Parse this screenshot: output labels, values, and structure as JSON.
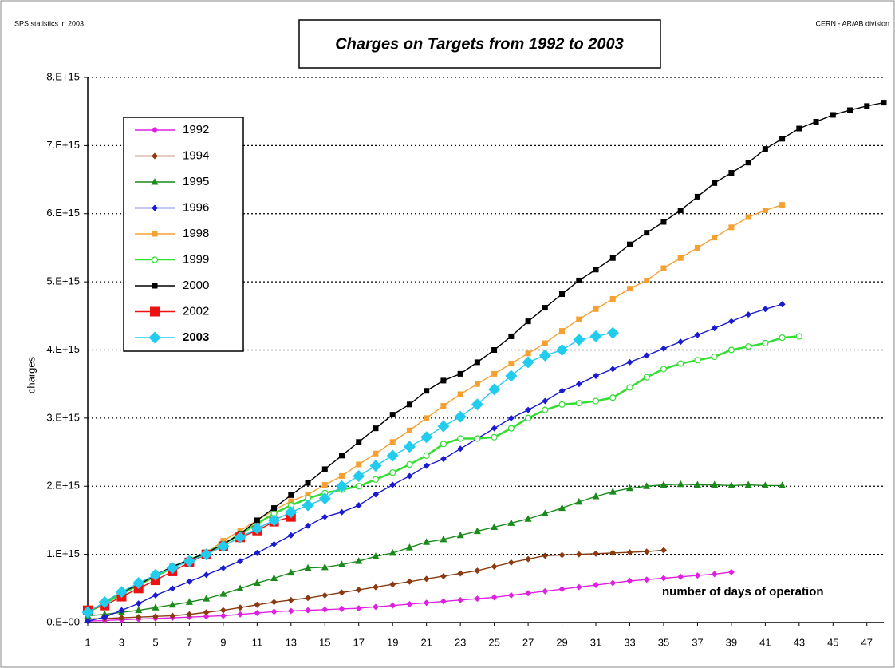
{
  "chart_data": {
    "type": "line",
    "title": "Charges on Targets from 1992 to 2003",
    "subtitle": "SPS statistics in 2003",
    "source": "CERN - AR/AB division",
    "y_label": "charges",
    "annotation": "number of days of operation",
    "x": [
      1,
      2,
      3,
      4,
      5,
      6,
      7,
      8,
      9,
      10,
      11,
      12,
      13,
      14,
      15,
      16,
      17,
      18,
      19,
      20,
      21,
      22,
      23,
      24,
      25,
      26,
      27,
      28,
      29,
      30,
      31,
      32,
      33,
      34,
      35,
      36,
      37,
      38,
      39,
      40,
      41,
      42,
      43,
      44,
      45,
      46,
      47,
      48
    ],
    "xlim": [
      1,
      48
    ],
    "xticks": [
      1,
      3,
      5,
      7,
      9,
      11,
      13,
      15,
      17,
      19,
      21,
      23,
      25,
      27,
      29,
      31,
      33,
      35,
      37,
      39,
      41,
      43,
      45,
      47
    ],
    "ylim": [
      0,
      8000000000000000.0
    ],
    "yticks": [
      {
        "value": 0,
        "label": "0.E+00"
      },
      {
        "value": 1000000000000000.0,
        "label": "1.E+15"
      },
      {
        "value": 2000000000000000.0,
        "label": "2.E+15"
      },
      {
        "value": 3000000000000000.0,
        "label": "3.E+15"
      },
      {
        "value": 4000000000000000.0,
        "label": "4.E+15"
      },
      {
        "value": 5000000000000000.0,
        "label": "5.E+15"
      },
      {
        "value": 6000000000000000.0,
        "label": "6.E+15"
      },
      {
        "value": 7000000000000000.0,
        "label": "7.E+15"
      },
      {
        "value": 8000000000000000.0,
        "label": "8.E+15"
      }
    ],
    "grid": true,
    "legend": "upper left",
    "series": [
      {
        "name": "1992",
        "color": "#e020e0",
        "marker": "diamond",
        "values": [
          20000000000000.0,
          30000000000000.0,
          40000000000000.0,
          50000000000000.0,
          60000000000000.0,
          70000000000000.0,
          80000000000000.0,
          90000000000000.0,
          100000000000000.0,
          120000000000000.0,
          140000000000000.0,
          160000000000000.0,
          170000000000000.0,
          180000000000000.0,
          190000000000000.0,
          200000000000000.0,
          210000000000000.0,
          230000000000000.0,
          250000000000000.0,
          270000000000000.0,
          290000000000000.0,
          310000000000000.0,
          330000000000000.0,
          350000000000000.0,
          370000000000000.0,
          400000000000000.0,
          430000000000000.0,
          460000000000000.0,
          490000000000000.0,
          520000000000000.0,
          550000000000000.0,
          580000000000000.0,
          610000000000000.0,
          630000000000000.0,
          650000000000000.0,
          670000000000000.0,
          690000000000000.0,
          710000000000000.0,
          740000000000000.0,
          null,
          null,
          null,
          null,
          null,
          null,
          null,
          null,
          null
        ]
      },
      {
        "name": "1994",
        "color": "#8b3a10",
        "marker": "diamond",
        "values": [
          50000000000000.0,
          60000000000000.0,
          70000000000000.0,
          80000000000000.0,
          90000000000000.0,
          100000000000000.0,
          120000000000000.0,
          150000000000000.0,
          180000000000000.0,
          220000000000000.0,
          260000000000000.0,
          300000000000000.0,
          330000000000000.0,
          360000000000000.0,
          400000000000000.0,
          440000000000000.0,
          480000000000000.0,
          520000000000000.0,
          560000000000000.0,
          600000000000000.0,
          640000000000000.0,
          680000000000000.0,
          720000000000000.0,
          760000000000000.0,
          820000000000000.0,
          880000000000000.0,
          930000000000000.0,
          980000000000000.0,
          990000000000000.0,
          1000000000000000.0,
          1010000000000000.0,
          1020000000000000.0,
          1030000000000000.0,
          1040000000000000.0,
          1060000000000000.0,
          null,
          null,
          null,
          null,
          null,
          null,
          null,
          null,
          null,
          null,
          null,
          null,
          null
        ]
      },
      {
        "name": "1995",
        "color": "#1a8a1a",
        "marker": "triangle",
        "values": [
          100000000000000.0,
          120000000000000.0,
          150000000000000.0,
          180000000000000.0,
          220000000000000.0,
          260000000000000.0,
          300000000000000.0,
          350000000000000.0,
          420000000000000.0,
          500000000000000.0,
          580000000000000.0,
          650000000000000.0,
          730000000000000.0,
          800000000000000.0,
          810000000000000.0,
          850000000000000.0,
          900000000000000.0,
          970000000000000.0,
          1020000000000000.0,
          1100000000000000.0,
          1180000000000000.0,
          1220000000000000.0,
          1280000000000000.0,
          1340000000000000.0,
          1400000000000000.0,
          1460000000000000.0,
          1520000000000000.0,
          1600000000000000.0,
          1680000000000000.0,
          1770000000000000.0,
          1850000000000000.0,
          1920000000000000.0,
          1970000000000000.0,
          2000000000000000.0,
          2020000000000000.0,
          2030000000000000.0,
          2020000000000000.0,
          2020000000000000.0,
          2010000000000000.0,
          2020000000000000.0,
          2010000000000000.0,
          2010000000000000.0,
          null,
          null,
          null,
          null,
          null,
          null
        ]
      },
      {
        "name": "1996",
        "color": "#1a1ad0",
        "marker": "diamond",
        "values": [
          20000000000000.0,
          80000000000000.0,
          180000000000000.0,
          280000000000000.0,
          400000000000000.0,
          500000000000000.0,
          600000000000000.0,
          700000000000000.0,
          800000000000000.0,
          900000000000000.0,
          1020000000000000.0,
          1150000000000000.0,
          1280000000000000.0,
          1420000000000000.0,
          1550000000000000.0,
          1620000000000000.0,
          1720000000000000.0,
          1880000000000000.0,
          2020000000000000.0,
          2150000000000000.0,
          2300000000000000.0,
          2400000000000000.0,
          2550000000000000.0,
          2700000000000000.0,
          2850000000000000.0,
          3000000000000000.0,
          3120000000000000.0,
          3250000000000000.0,
          3400000000000000.0,
          3500000000000000.0,
          3620000000000000.0,
          3720000000000000.0,
          3820000000000000.0,
          3920000000000000.0,
          4020000000000000.0,
          4120000000000000.0,
          4220000000000000.0,
          4320000000000000.0,
          4420000000000000.0,
          4520000000000000.0,
          4600000000000000.0,
          4670000000000000.0,
          null,
          null,
          null,
          null,
          null,
          null
        ]
      },
      {
        "name": "1998",
        "color": "#f5a030",
        "marker": "square",
        "values": [
          150000000000000.0,
          280000000000000.0,
          420000000000000.0,
          550000000000000.0,
          680000000000000.0,
          800000000000000.0,
          920000000000000.0,
          1020000000000000.0,
          1200000000000000.0,
          1350000000000000.0,
          1500000000000000.0,
          1650000000000000.0,
          1780000000000000.0,
          1880000000000000.0,
          2020000000000000.0,
          2150000000000000.0,
          2320000000000000.0,
          2480000000000000.0,
          2650000000000000.0,
          2820000000000000.0,
          3000000000000000.0,
          3180000000000000.0,
          3350000000000000.0,
          3500000000000000.0,
          3650000000000000.0,
          3800000000000000.0,
          3950000000000000.0,
          4100000000000000.0,
          4280000000000000.0,
          4450000000000000.0,
          4600000000000000.0,
          4750000000000000.0,
          4900000000000000.0,
          5020000000000000.0,
          5200000000000000.0,
          5350000000000000.0,
          5500000000000000.0,
          5650000000000000.0,
          5800000000000000.0,
          5950000000000000.0,
          6050000000000000.0,
          6130000000000000.0,
          null,
          null,
          null,
          null,
          null,
          null
        ]
      },
      {
        "name": "1999",
        "color": "#33dd33",
        "marker": "circle",
        "values": [
          150000000000000.0,
          280000000000000.0,
          420000000000000.0,
          550000000000000.0,
          680000000000000.0,
          800000000000000.0,
          920000000000000.0,
          1020000000000000.0,
          1150000000000000.0,
          1300000000000000.0,
          1450000000000000.0,
          1600000000000000.0,
          1720000000000000.0,
          1820000000000000.0,
          1900000000000000.0,
          1950000000000000.0,
          2000000000000000.0,
          2100000000000000.0,
          2200000000000000.0,
          2320000000000000.0,
          2450000000000000.0,
          2620000000000000.0,
          2700000000000000.0,
          2700000000000000.0,
          2720000000000000.0,
          2850000000000000.0,
          3000000000000000.0,
          3120000000000000.0,
          3200000000000000.0,
          3220000000000000.0,
          3250000000000000.0,
          3300000000000000.0,
          3450000000000000.0,
          3600000000000000.0,
          3720000000000000.0,
          3800000000000000.0,
          3850000000000000.0,
          3900000000000000.0,
          4000000000000000.0,
          4050000000000000.0,
          4100000000000000.0,
          4180000000000000.0,
          4200000000000000.0,
          null,
          null,
          null,
          null,
          null
        ]
      },
      {
        "name": "2000",
        "color": "#000000",
        "marker": "square",
        "values": [
          150000000000000.0,
          300000000000000.0,
          450000000000000.0,
          550000000000000.0,
          700000000000000.0,
          820000000000000.0,
          920000000000000.0,
          1020000000000000.0,
          1150000000000000.0,
          1300000000000000.0,
          1500000000000000.0,
          1680000000000000.0,
          1870000000000000.0,
          2050000000000000.0,
          2250000000000000.0,
          2450000000000000.0,
          2650000000000000.0,
          2850000000000000.0,
          3050000000000000.0,
          3200000000000000.0,
          3400000000000000.0,
          3550000000000000.0,
          3650000000000000.0,
          3820000000000000.0,
          4000000000000000.0,
          4200000000000000.0,
          4420000000000000.0,
          4620000000000000.0,
          4820000000000000.0,
          5020000000000000.0,
          5180000000000000.0,
          5350000000000000.0,
          5550000000000000.0,
          5720000000000000.0,
          5880000000000000.0,
          6050000000000000.0,
          6250000000000000.0,
          6450000000000000.0,
          6600000000000000.0,
          6750000000000000.0,
          6950000000000000.0,
          7100000000000000.0,
          7250000000000000.0,
          7350000000000000.0,
          7450000000000000.0,
          7520000000000000.0,
          7580000000000000.0,
          7630000000000000.0
        ]
      },
      {
        "name": "2002",
        "color": "#ee1111",
        "marker": "bigsquare",
        "values": [
          180000000000000.0,
          250000000000000.0,
          380000000000000.0,
          500000000000000.0,
          620000000000000.0,
          750000000000000.0,
          880000000000000.0,
          1000000000000000.0,
          1120000000000000.0,
          1250000000000000.0,
          1350000000000000.0,
          1480000000000000.0,
          1550000000000000.0,
          null,
          null,
          null,
          null,
          null,
          null,
          null,
          null,
          null,
          null,
          null,
          null,
          null,
          null,
          null,
          null,
          null,
          null,
          null,
          null,
          null,
          null,
          null,
          null,
          null,
          null,
          null,
          null,
          null,
          null,
          null,
          null,
          null,
          null,
          null
        ]
      },
      {
        "name": "2003",
        "color": "#22ccee",
        "marker": "bigdiamond",
        "values": [
          150000000000000.0,
          300000000000000.0,
          450000000000000.0,
          580000000000000.0,
          700000000000000.0,
          800000000000000.0,
          900000000000000.0,
          1000000000000000.0,
          1120000000000000.0,
          1250000000000000.0,
          1380000000000000.0,
          1500000000000000.0,
          1620000000000000.0,
          1720000000000000.0,
          1820000000000000.0,
          2000000000000000.0,
          2150000000000000.0,
          2300000000000000.0,
          2450000000000000.0,
          2580000000000000.0,
          2720000000000000.0,
          2880000000000000.0,
          3020000000000000.0,
          3200000000000000.0,
          3420000000000000.0,
          3620000000000000.0,
          3820000000000000.0,
          3920000000000000.0,
          4000000000000000.0,
          4150000000000000.0,
          4200000000000000.0,
          4250000000000000.0,
          null,
          null,
          null,
          null,
          null,
          null,
          null,
          null,
          null,
          null,
          null,
          null,
          null,
          null,
          null,
          null
        ]
      }
    ]
  }
}
